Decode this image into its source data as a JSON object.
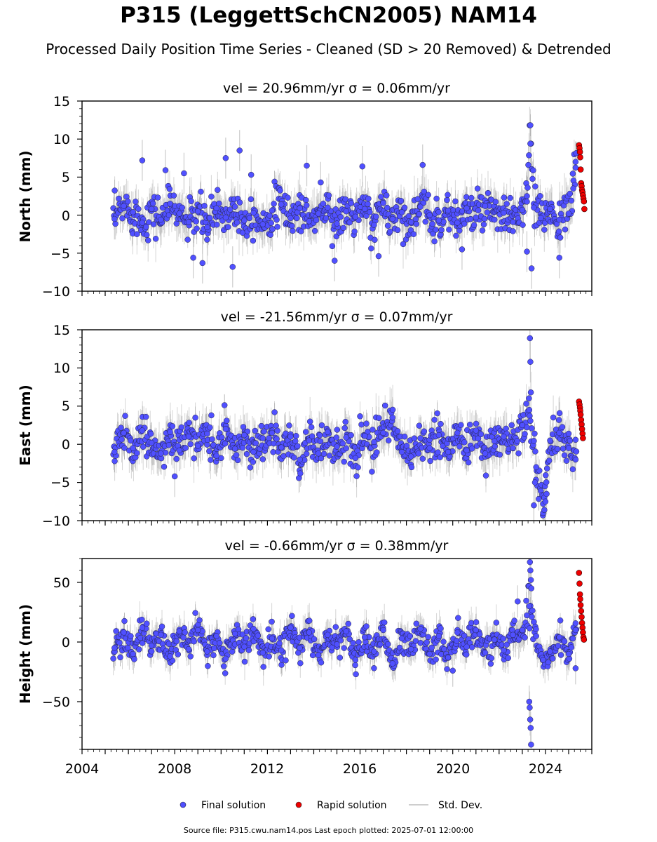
{
  "title": "P315 (LeggettSchCN2005) NAM14",
  "subtitle": "Processed Daily Position Time Series - Cleaned (SD > 20 Removed) & Detrended",
  "footer": "Source file: P315.cwu.nam14.pos  Last epoch plotted: 2025-07-01 12:00:00",
  "colors": {
    "final": "#5050ff",
    "rapid": "#ee0000",
    "std": "#cccccc",
    "edge": "#222244"
  },
  "legend": {
    "final_label": "Final solution",
    "rapid_label": "Rapid solution",
    "std_label": "Std. Dev."
  },
  "chart_data": [
    {
      "type": "scatter",
      "title": "vel = 20.96mm/yr   σ = 0.06mm/yr",
      "ylabel": "North (mm)",
      "xlabel": "",
      "xlim": [
        2004,
        2026
      ],
      "ylim": [
        -10,
        15
      ],
      "y_ticks": [
        "15",
        "10",
        "5",
        "0",
        "−5",
        "−10"
      ],
      "x_ticks": [],
      "grid": false,
      "series": [
        {
          "name": "Final solution",
          "x": [
            2005.4,
            2005.8,
            2006.2,
            2006.6,
            2007.0,
            2007.4,
            2007.8,
            2008.2,
            2008.6,
            2009.0,
            2009.4,
            2009.8,
            2010.2,
            2010.6,
            2011.0,
            2011.4,
            2011.8,
            2012.2,
            2012.6,
            2013.0,
            2013.4,
            2013.8,
            2014.2,
            2014.6,
            2015.0,
            2015.4,
            2015.8,
            2016.2,
            2016.6,
            2017.0,
            2017.4,
            2017.8,
            2018.2,
            2018.6,
            2019.0,
            2019.4,
            2019.8,
            2020.2,
            2020.6,
            2021.0,
            2021.4,
            2021.8,
            2022.2,
            2022.6,
            2023.0,
            2023.2,
            2023.35,
            2023.5,
            2023.8,
            2024.2,
            2024.6,
            2025.0,
            2025.2,
            2025.3
          ],
          "y": [
            -0.5,
            1.2,
            0.4,
            -1.0,
            0.8,
            -0.6,
            1.5,
            0.2,
            -0.9,
            0.5,
            -1.6,
            0.9,
            -0.3,
            1.1,
            -0.7,
            0.3,
            -1.2,
            0.6,
            1.4,
            -0.4,
            0.9,
            -0.8,
            0.2,
            1.0,
            -1.1,
            0.5,
            -0.2,
            0.8,
            -1.3,
            1.6,
            -0.5,
            0.4,
            -0.9,
            1.1,
            0.0,
            -0.7,
            0.6,
            -1.0,
            0.9,
            -0.3,
            1.2,
            -0.6,
            0.3,
            -0.9,
            0.7,
            2.5,
            9.4,
            1.0,
            -0.4,
            0.8,
            -0.6,
            0.2,
            3.5,
            7.0
          ]
        },
        {
          "name": "Rapid solution",
          "x": [
            2025.45,
            2025.47,
            2025.49,
            2025.5,
            2025.52,
            2025.54,
            2025.56,
            2025.58,
            2025.6,
            2025.62,
            2025.64,
            2025.66,
            2025.68
          ],
          "y": [
            9.2,
            8.8,
            8.3,
            7.6,
            6.0,
            4.2,
            3.8,
            3.3,
            3.0,
            2.6,
            2.2,
            1.8,
            0.8
          ]
        }
      ],
      "outliers": {
        "x": [
          2006.6,
          2007.6,
          2008.4,
          2008.8,
          2010.2,
          2010.8,
          2011.3,
          2013.7,
          2014.3,
          2016.1,
          2018.7,
          2009.2,
          2010.5,
          2014.9,
          2016.8,
          2020.4,
          2023.2,
          2023.4,
          2024.6
        ],
        "y": [
          7.2,
          5.9,
          5.5,
          -5.6,
          7.5,
          8.5,
          5.3,
          6.5,
          4.3,
          6.4,
          6.6,
          -6.3,
          -6.8,
          -6.0,
          -5.4,
          -4.5,
          -4.8,
          -7.0,
          -5.6
        ]
      }
    },
    {
      "type": "scatter",
      "title": "vel = -21.56mm/yr   σ = 0.07mm/yr",
      "ylabel": "East (mm)",
      "xlabel": "",
      "xlim": [
        2004,
        2026
      ],
      "ylim": [
        -10,
        15
      ],
      "y_ticks": [
        "15",
        "10",
        "5",
        "0",
        "−5",
        "−10"
      ],
      "x_ticks": [],
      "grid": false,
      "series": [
        {
          "name": "Final solution",
          "x": [
            2005.4,
            2005.8,
            2006.2,
            2006.6,
            2007.0,
            2007.4,
            2007.8,
            2008.2,
            2008.6,
            2009.0,
            2009.4,
            2009.8,
            2010.2,
            2010.6,
            2011.0,
            2011.4,
            2011.8,
            2012.2,
            2012.6,
            2013.0,
            2013.4,
            2013.8,
            2014.2,
            2014.6,
            2015.0,
            2015.4,
            2015.8,
            2016.2,
            2016.6,
            2017.0,
            2017.4,
            2017.8,
            2018.2,
            2018.6,
            2019.0,
            2019.4,
            2019.8,
            2020.2,
            2020.6,
            2021.0,
            2021.4,
            2021.8,
            2022.2,
            2022.6,
            2023.0,
            2023.3,
            2023.6,
            2023.9,
            2024.2,
            2024.6,
            2025.0,
            2025.3
          ],
          "y": [
            -1.0,
            1.5,
            -0.5,
            1.8,
            0.2,
            -1.2,
            1.6,
            -0.8,
            1.0,
            -0.2,
            1.4,
            -1.5,
            2.0,
            -0.6,
            1.2,
            -1.0,
            0.8,
            1.5,
            -0.4,
            1.0,
            -2.0,
            0.5,
            -1.2,
            1.6,
            -0.3,
            0.9,
            -1.8,
            1.1,
            0.3,
            1.5,
            3.5,
            -1.0,
            -1.6,
            0.8,
            -0.5,
            1.2,
            -1.0,
            1.5,
            -0.8,
            1.8,
            -1.2,
            0.4,
            1.0,
            -0.5,
            2.5,
            4.5,
            -3.0,
            -7.8,
            0.5,
            1.5,
            -0.5,
            -2.0
          ]
        },
        {
          "name": "Rapid solution",
          "x": [
            2025.45,
            2025.47,
            2025.49,
            2025.5,
            2025.52,
            2025.54,
            2025.56,
            2025.58,
            2025.6,
            2025.62
          ],
          "y": [
            5.6,
            5.2,
            4.8,
            4.4,
            3.9,
            3.2,
            2.6,
            2.0,
            1.4,
            0.8
          ]
        }
      ],
      "outliers": {
        "x": [
          2023.33,
          2023.35,
          2023.37,
          2008.0,
          2023.5,
          2023.55,
          2023.9,
          2023.95,
          2024.0,
          2024.05
        ],
        "y": [
          13.9,
          10.8,
          6.8,
          -4.2,
          -8.0,
          -5.0,
          -9.0,
          -8.6,
          -7.5,
          -6.5
        ]
      }
    },
    {
      "type": "scatter",
      "title": "vel = -0.66mm/yr   σ = 0.38mm/yr",
      "ylabel": "Height (mm)",
      "xlabel": "",
      "xlim": [
        2004,
        2026
      ],
      "ylim": [
        -90,
        70
      ],
      "y_ticks": [
        "50",
        "0",
        "−50"
      ],
      "x_ticks": [
        "2004",
        "2008",
        "2012",
        "2016",
        "2020",
        "2024"
      ],
      "grid": false,
      "series": [
        {
          "name": "Final solution",
          "x": [
            2005.4,
            2005.8,
            2006.2,
            2006.6,
            2007.0,
            2007.4,
            2007.8,
            2008.2,
            2008.6,
            2009.0,
            2009.4,
            2009.8,
            2010.2,
            2010.6,
            2011.0,
            2011.4,
            2011.8,
            2012.2,
            2012.6,
            2013.0,
            2013.4,
            2013.8,
            2014.2,
            2014.6,
            2015.0,
            2015.4,
            2015.8,
            2016.2,
            2016.6,
            2017.0,
            2017.4,
            2017.8,
            2018.2,
            2018.6,
            2019.0,
            2019.4,
            2019.8,
            2020.2,
            2020.6,
            2021.0,
            2021.4,
            2021.8,
            2022.2,
            2022.6,
            2023.0,
            2023.3,
            2023.6,
            2023.9,
            2024.2,
            2024.6,
            2025.0,
            2025.3
          ],
          "y": [
            -5,
            8,
            -10,
            12,
            -3,
            6,
            -12,
            9,
            -6,
            10,
            -8,
            5,
            -14,
            7,
            -4,
            11,
            -9,
            3,
            -7,
            12,
            -5,
            8,
            -11,
            6,
            -2,
            9,
            -15,
            4,
            -8,
            10,
            -18,
            3,
            -6,
            11,
            -10,
            5,
            -13,
            8,
            -4,
            10,
            -9,
            2,
            -7,
            6,
            10,
            30,
            5,
            -15,
            -8,
            4,
            -10,
            10
          ]
        },
        {
          "name": "Rapid solution",
          "x": [
            2025.45,
            2025.47,
            2025.49,
            2025.5,
            2025.52,
            2025.54,
            2025.56,
            2025.58,
            2025.6,
            2025.62,
            2025.64,
            2025.66
          ],
          "y": [
            58,
            49,
            40,
            36,
            31,
            26,
            21,
            16,
            12,
            8,
            4,
            2
          ]
        }
      ],
      "outliers": {
        "x": [
          2023.33,
          2023.35,
          2023.37,
          2023.39,
          2023.3,
          2023.32,
          2023.34,
          2023.36,
          2023.38,
          2022.8,
          2020.0,
          2025.3
        ],
        "y": [
          67,
          60,
          52,
          45,
          -50,
          -55,
          -65,
          -72,
          -86,
          34,
          -24,
          -22
        ]
      }
    }
  ]
}
